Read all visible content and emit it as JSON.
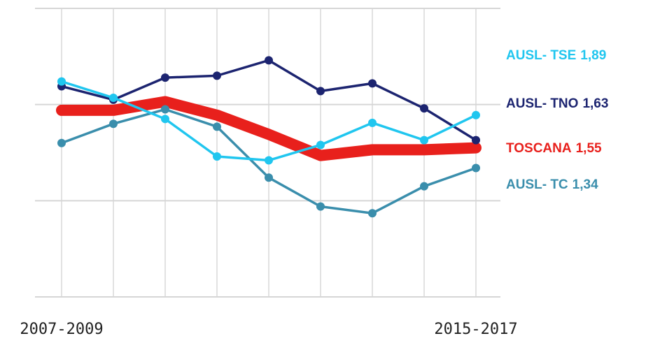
{
  "chart_data": {
    "type": "line",
    "categories": [
      "2007-2009",
      null,
      null,
      null,
      null,
      null,
      null,
      null,
      "2015-2017"
    ],
    "ylim": [
      0,
      3
    ],
    "yticks": [
      0,
      1,
      2,
      3
    ],
    "grid": true,
    "series": [
      {
        "name": "TOSCANA",
        "color": "#e8201c",
        "values": [
          1.94,
          1.94,
          2.03,
          1.89,
          1.69,
          1.47,
          1.53,
          1.53,
          1.55
        ],
        "value_labels": [
          null,
          null,
          null,
          null,
          null,
          null,
          null,
          null,
          "1,55"
        ]
      },
      {
        "name": "AUSL- TC",
        "color": "#3a8eac",
        "values": [
          1.6,
          1.8,
          1.95,
          1.77,
          1.24,
          0.94,
          0.87,
          1.15,
          1.34
        ],
        "value_labels": [
          null,
          null,
          null,
          null,
          null,
          null,
          null,
          null,
          "1,34"
        ]
      },
      {
        "name": "AUSL- TNO",
        "color": "#1c2470",
        "values": [
          2.19,
          2.05,
          2.28,
          2.3,
          2.46,
          2.14,
          2.22,
          1.96,
          1.63
        ],
        "value_labels": [
          null,
          null,
          null,
          null,
          null,
          null,
          null,
          null,
          "1,63"
        ]
      },
      {
        "name": "AUSL- TSE",
        "color": "#20c6ef",
        "values": [
          2.24,
          2.07,
          1.85,
          1.46,
          1.42,
          1.58,
          1.81,
          1.63,
          1.89
        ],
        "value_labels": [
          null,
          null,
          null,
          null,
          null,
          null,
          null,
          null,
          "1,89"
        ]
      }
    ]
  }
}
